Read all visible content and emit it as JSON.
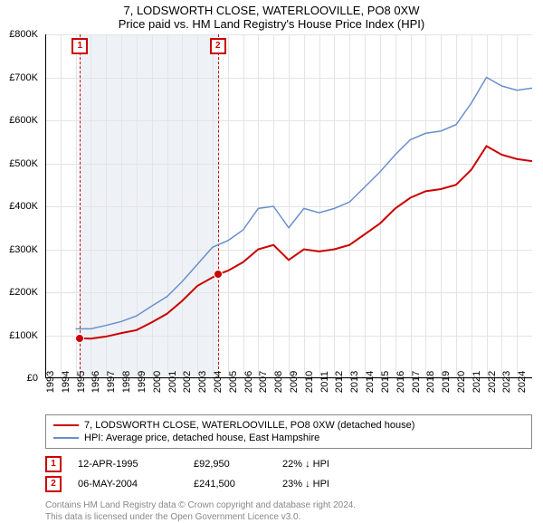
{
  "title": "7, LODSWORTH CLOSE, WATERLOOVILLE, PO8 0XW",
  "subtitle": "Price paid vs. HM Land Registry's House Price Index (HPI)",
  "chart": {
    "type": "line",
    "background_color": "#ffffff",
    "grid_color": "#e4e4e4",
    "axis_color": "#000000",
    "x_years": [
      1993,
      1994,
      1995,
      1996,
      1997,
      1998,
      1999,
      2000,
      2001,
      2002,
      2003,
      2004,
      2005,
      2006,
      2007,
      2008,
      2009,
      2010,
      2011,
      2012,
      2013,
      2014,
      2015,
      2016,
      2017,
      2018,
      2019,
      2020,
      2021,
      2022,
      2023,
      2024
    ],
    "x_range": [
      1993,
      2025
    ],
    "y_range": [
      0,
      800000
    ],
    "y_ticks": [
      0,
      100000,
      200000,
      300000,
      400000,
      500000,
      600000,
      700000,
      800000
    ],
    "y_tick_labels": [
      "£0",
      "£100K",
      "£200K",
      "£300K",
      "£400K",
      "£500K",
      "£600K",
      "£700K",
      "£800K"
    ],
    "shade_region": {
      "from": 1995.28,
      "to": 2004.35,
      "color": "#eef2f7"
    },
    "sale_lines": [
      1995.28,
      2004.35
    ],
    "title_fontsize": 13,
    "label_fontsize": 11,
    "series": [
      {
        "name": "property",
        "label": "7, LODSWORTH CLOSE, WATERLOOVILLE, PO8 0XW (detached house)",
        "color": "#cc0000",
        "line_width": 2,
        "data": [
          [
            1995.28,
            92950
          ],
          [
            1996,
            92000
          ],
          [
            1997,
            97000
          ],
          [
            1998,
            105000
          ],
          [
            1999,
            112000
          ],
          [
            2000,
            130000
          ],
          [
            2001,
            150000
          ],
          [
            2002,
            180000
          ],
          [
            2003,
            215000
          ],
          [
            2004.35,
            241500
          ],
          [
            2005,
            250000
          ],
          [
            2006,
            270000
          ],
          [
            2007,
            300000
          ],
          [
            2008,
            310000
          ],
          [
            2009,
            275000
          ],
          [
            2010,
            300000
          ],
          [
            2011,
            295000
          ],
          [
            2012,
            300000
          ],
          [
            2013,
            310000
          ],
          [
            2014,
            335000
          ],
          [
            2015,
            360000
          ],
          [
            2016,
            395000
          ],
          [
            2017,
            420000
          ],
          [
            2018,
            435000
          ],
          [
            2019,
            440000
          ],
          [
            2020,
            450000
          ],
          [
            2021,
            485000
          ],
          [
            2022,
            540000
          ],
          [
            2023,
            520000
          ],
          [
            2024,
            510000
          ],
          [
            2025,
            505000
          ]
        ],
        "markers": [
          {
            "x": 1995.28,
            "y": 92950
          },
          {
            "x": 2004.35,
            "y": 241500
          }
        ]
      },
      {
        "name": "hpi",
        "label": "HPI: Average price, detached house, East Hampshire",
        "color": "#6a8fcc",
        "line_width": 1.5,
        "data": [
          [
            1995,
            115000
          ],
          [
            1996,
            115000
          ],
          [
            1997,
            123000
          ],
          [
            1998,
            132000
          ],
          [
            1999,
            145000
          ],
          [
            2000,
            168000
          ],
          [
            2001,
            190000
          ],
          [
            2002,
            225000
          ],
          [
            2003,
            265000
          ],
          [
            2004,
            305000
          ],
          [
            2005,
            320000
          ],
          [
            2006,
            345000
          ],
          [
            2007,
            395000
          ],
          [
            2008,
            400000
          ],
          [
            2009,
            350000
          ],
          [
            2010,
            395000
          ],
          [
            2011,
            385000
          ],
          [
            2012,
            395000
          ],
          [
            2013,
            410000
          ],
          [
            2014,
            445000
          ],
          [
            2015,
            480000
          ],
          [
            2016,
            520000
          ],
          [
            2017,
            555000
          ],
          [
            2018,
            570000
          ],
          [
            2019,
            575000
          ],
          [
            2020,
            590000
          ],
          [
            2021,
            640000
          ],
          [
            2022,
            700000
          ],
          [
            2023,
            680000
          ],
          [
            2024,
            670000
          ],
          [
            2025,
            675000
          ]
        ]
      }
    ]
  },
  "legend": {
    "items": [
      {
        "label": "7, LODSWORTH CLOSE, WATERLOOVILLE, PO8 0XW (detached house)",
        "color": "#cc0000"
      },
      {
        "label": "HPI: Average price, detached house, East Hampshire",
        "color": "#6a8fcc"
      }
    ]
  },
  "sales": [
    {
      "n": "1",
      "date": "12-APR-1995",
      "price": "£92,950",
      "diff": "22% ↓ HPI"
    },
    {
      "n": "2",
      "date": "06-MAY-2004",
      "price": "£241,500",
      "diff": "23% ↓ HPI"
    }
  ],
  "footer": {
    "line1": "Contains HM Land Registry data © Crown copyright and database right 2024.",
    "line2": "This data is licensed under the Open Government Licence v3.0."
  }
}
